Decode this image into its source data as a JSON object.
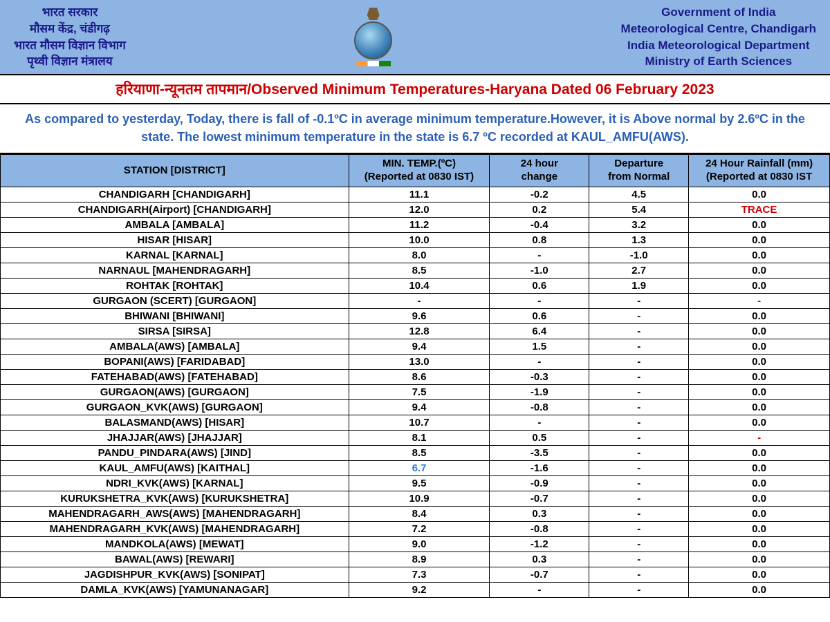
{
  "colors": {
    "header_bg": "#8db4e2",
    "header_text": "#1a1a8a",
    "title_text": "#cc0000",
    "summary_text": "#2b5fb5",
    "border": "#000000",
    "low_temp": "#2b7fd4",
    "red_value": "#cc0000",
    "background": "#ffffff"
  },
  "header": {
    "hindi_lines": [
      "भारत सरकार",
      "मौसम केंद्र, चंडीगढ़",
      "भारत मौसम विज्ञान विभाग",
      "पृथ्वी विज्ञान मंत्रालय"
    ],
    "english_lines": [
      "Government of India",
      "Meteorological Centre, Chandigarh",
      "India Meteorological Department",
      "Ministry of Earth Sciences"
    ]
  },
  "title": {
    "hindi": "हरियाणा-न्यूनतम तापमान",
    "separator": "/",
    "english": "Observed Minimum Temperatures-Haryana Dated 06 February 2023"
  },
  "summary": "As compared to yesterday, Today, there is fall of -0.1ºC in average minimum temperature.However, it is Above normal by 2.6ºC in the state. The lowest minimum temperature in the state is 6.7 ºC recorded at KAUL_AMFU(AWS).",
  "table": {
    "columns": [
      {
        "key": "station",
        "label_line1": "STATION  [DISTRICT]",
        "label_line2": ""
      },
      {
        "key": "min_temp",
        "label_line1": "MIN. TEMP.(ºC)",
        "label_line2": "(Reported at 0830 IST)"
      },
      {
        "key": "change_24h",
        "label_line1": "24 hour",
        "label_line2": "change"
      },
      {
        "key": "departure",
        "label_line1": "Departure",
        "label_line2": "from Normal"
      },
      {
        "key": "rainfall",
        "label_line1": "24 Hour Rainfall (mm)",
        "label_line2": "(Reported at 0830 IST"
      }
    ],
    "rows": [
      {
        "station": "CHANDIGARH  [CHANDIGARH]",
        "min_temp": "11.1",
        "change_24h": "-0.2",
        "departure": "4.5",
        "rainfall": "0.0"
      },
      {
        "station": "CHANDIGARH(Airport)  [CHANDIGARH]",
        "min_temp": "12.0",
        "change_24h": "0.2",
        "departure": "5.4",
        "rainfall": "TRACE",
        "rainfall_red": true
      },
      {
        "station": "AMBALA  [AMBALA]",
        "min_temp": "11.2",
        "change_24h": "-0.4",
        "departure": "3.2",
        "rainfall": "0.0"
      },
      {
        "station": "HISAR  [HISAR]",
        "min_temp": "10.0",
        "change_24h": "0.8",
        "departure": "1.3",
        "rainfall": "0.0"
      },
      {
        "station": "KARNAL  [KARNAL]",
        "min_temp": "8.0",
        "change_24h": "-",
        "departure": "-1.0",
        "rainfall": "0.0"
      },
      {
        "station": "NARNAUL  [MAHENDRAGARH]",
        "min_temp": "8.5",
        "change_24h": "-1.0",
        "departure": "2.7",
        "rainfall": "0.0"
      },
      {
        "station": "ROHTAK  [ROHTAK]",
        "min_temp": "10.4",
        "change_24h": "0.6",
        "departure": "1.9",
        "rainfall": "0.0"
      },
      {
        "station": "GURGAON (SCERT)  [GURGAON]",
        "min_temp": "-",
        "change_24h": "-",
        "departure": "-",
        "rainfall": "-",
        "rainfall_red": true
      },
      {
        "station": "BHIWANI  [BHIWANI]",
        "min_temp": "9.6",
        "change_24h": "0.6",
        "departure": "-",
        "rainfall": "0.0"
      },
      {
        "station": "SIRSA  [SIRSA]",
        "min_temp": "12.8",
        "change_24h": "6.4",
        "departure": "-",
        "rainfall": "0.0"
      },
      {
        "station": "AMBALA(AWS)  [AMBALA]",
        "min_temp": "9.4",
        "change_24h": "1.5",
        "departure": "-",
        "rainfall": "0.0"
      },
      {
        "station": "BOPANI(AWS)  [FARIDABAD]",
        "min_temp": "13.0",
        "change_24h": "-",
        "departure": "-",
        "rainfall": "0.0"
      },
      {
        "station": "FATEHABAD(AWS)  [FATEHABAD]",
        "min_temp": "8.6",
        "change_24h": "-0.3",
        "departure": "-",
        "rainfall": "0.0"
      },
      {
        "station": "GURGAON(AWS)  [GURGAON]",
        "min_temp": "7.5",
        "change_24h": "-1.9",
        "departure": "-",
        "rainfall": "0.0"
      },
      {
        "station": "GURGAON_KVK(AWS)  [GURGAON]",
        "min_temp": "9.4",
        "change_24h": "-0.8",
        "departure": "-",
        "rainfall": "0.0"
      },
      {
        "station": "BALASMAND(AWS)  [HISAR]",
        "min_temp": "10.7",
        "change_24h": "-",
        "departure": "-",
        "rainfall": "0.0"
      },
      {
        "station": "JHAJJAR(AWS)  [JHAJJAR]",
        "min_temp": "8.1",
        "change_24h": "0.5",
        "departure": "-",
        "rainfall": "-",
        "rainfall_red": true
      },
      {
        "station": "PANDU_PINDARA(AWS)  [JIND]",
        "min_temp": "8.5",
        "change_24h": "-3.5",
        "departure": "-",
        "rainfall": "0.0"
      },
      {
        "station": "KAUL_AMFU(AWS)  [KAITHAL]",
        "min_temp": "6.7",
        "temp_low": true,
        "change_24h": "-1.6",
        "departure": "-",
        "rainfall": "0.0"
      },
      {
        "station": "NDRI_KVK(AWS)  [KARNAL]",
        "min_temp": "9.5",
        "change_24h": "-0.9",
        "departure": "-",
        "rainfall": "0.0"
      },
      {
        "station": "KURUKSHETRA_KVK(AWS)  [KURUKSHETRA]",
        "min_temp": "10.9",
        "change_24h": "-0.7",
        "departure": "-",
        "rainfall": "0.0"
      },
      {
        "station": "MAHENDRAGARH_AWS(AWS)  [MAHENDRAGARH]",
        "min_temp": "8.4",
        "change_24h": "0.3",
        "departure": "-",
        "rainfall": "0.0"
      },
      {
        "station": "MAHENDRAGARH_KVK(AWS)  [MAHENDRAGARH]",
        "min_temp": "7.2",
        "change_24h": "-0.8",
        "departure": "-",
        "rainfall": "0.0"
      },
      {
        "station": "MANDKOLA(AWS)  [MEWAT]",
        "min_temp": "9.0",
        "change_24h": "-1.2",
        "departure": "-",
        "rainfall": "0.0"
      },
      {
        "station": "BAWAL(AWS)  [REWARI]",
        "min_temp": "8.9",
        "change_24h": "0.3",
        "departure": "-",
        "rainfall": "0.0"
      },
      {
        "station": "JAGDISHPUR_KVK(AWS)  [SONIPAT]",
        "min_temp": "7.3",
        "change_24h": "-0.7",
        "departure": "-",
        "rainfall": "0.0"
      },
      {
        "station": "DAMLA_KVK(AWS)  [YAMUNANAGAR]",
        "min_temp": "9.2",
        "change_24h": "-",
        "departure": "-",
        "rainfall": "0.0"
      }
    ]
  }
}
